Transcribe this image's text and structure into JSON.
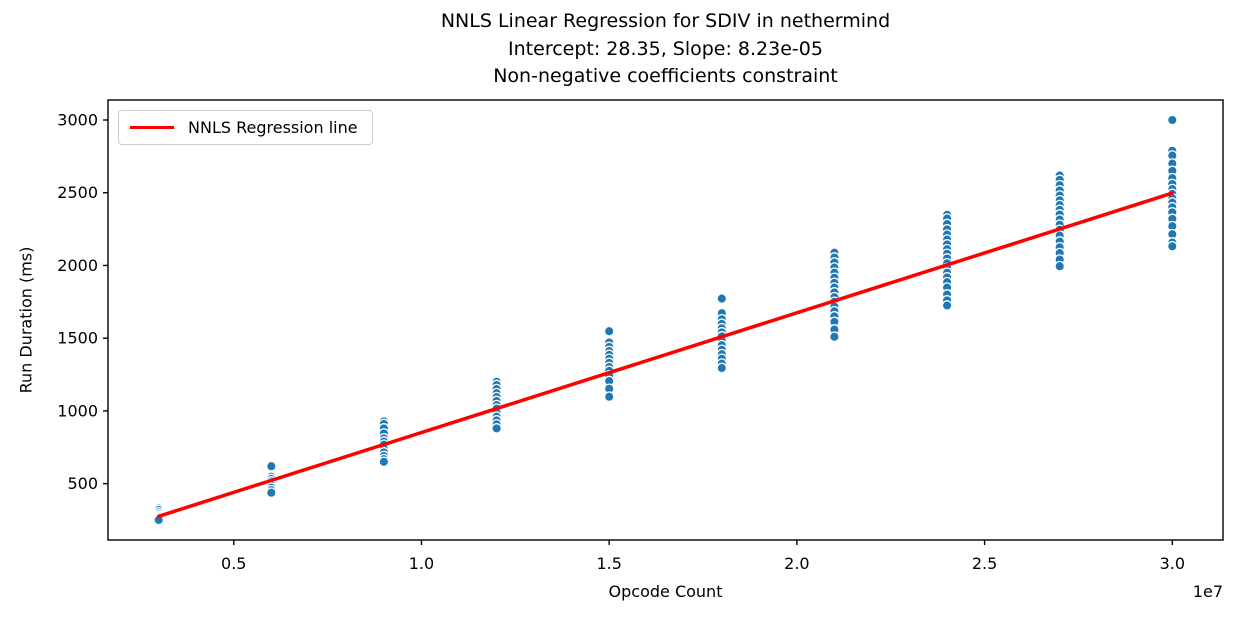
{
  "chart_data": {
    "type": "scatter",
    "title": "NNLS Linear Regression for SDIV in nethermind",
    "subtitle_intercept_slope": "Intercept: 28.35, Slope: 8.23e-05",
    "subtitle_constraint": "Non-negative coefficients constraint",
    "xlabel": "Opcode Count",
    "ylabel": "Run Duration (ms)",
    "x_scale_offset_label": "1e7",
    "xlim": [
      1650000,
      31350000
    ],
    "ylim": [
      112.5,
      3137.5
    ],
    "x_ticks": [
      5000000,
      10000000,
      15000000,
      20000000,
      25000000,
      30000000
    ],
    "x_tick_labels": [
      "0.5",
      "1.0",
      "1.5",
      "2.0",
      "2.5",
      "3.0"
    ],
    "y_ticks": [
      500,
      1000,
      1500,
      2000,
      2500,
      3000
    ],
    "y_tick_labels": [
      "500",
      "1000",
      "1500",
      "2000",
      "2500",
      "3000"
    ],
    "grid": false,
    "legend": {
      "position": "upper-left",
      "entries": [
        {
          "label": "NNLS Regression line",
          "color": "#ff0000",
          "type": "line"
        }
      ]
    },
    "scatter": {
      "marker_color": "#1f77b4",
      "marker_edge_color": "#ffffff",
      "clusters": [
        {
          "x": 3000000,
          "durations": [
            330,
            318,
            303,
            290,
            278,
            268,
            258,
            250
          ]
        },
        {
          "x": 6000000,
          "durations": [
            620,
            548,
            532,
            515,
            500,
            488,
            472,
            455,
            438
          ]
        },
        {
          "x": 9000000,
          "durations": [
            928,
            910,
            880,
            845,
            812,
            790,
            768,
            740,
            715,
            690,
            668,
            650
          ]
        },
        {
          "x": 12000000,
          "durations": [
            1200,
            1178,
            1150,
            1122,
            1095,
            1068,
            1040,
            1015,
            988,
            960,
            935,
            908,
            880
          ]
        },
        {
          "x": 15000000,
          "durations": [
            1548,
            1470,
            1440,
            1412,
            1385,
            1358,
            1330,
            1302,
            1275,
            1245,
            1205,
            1152,
            1098
          ]
        },
        {
          "x": 18000000,
          "durations": [
            1772,
            1672,
            1630,
            1598,
            1568,
            1540,
            1512,
            1482,
            1452,
            1420,
            1390,
            1358,
            1325,
            1295
          ]
        },
        {
          "x": 21000000,
          "durations": [
            2088,
            2055,
            2020,
            1985,
            1950,
            1915,
            1880,
            1848,
            1815,
            1782,
            1750,
            1718,
            1685,
            1650,
            1612,
            1560,
            1510
          ]
        },
        {
          "x": 24000000,
          "durations": [
            2348,
            2322,
            2285,
            2248,
            2212,
            2178,
            2145,
            2112,
            2080,
            2048,
            2015,
            1982,
            1950,
            1918,
            1885,
            1848,
            1800,
            1760,
            1725
          ]
        },
        {
          "x": 27000000,
          "durations": [
            2618,
            2588,
            2552,
            2515,
            2480,
            2448,
            2415,
            2382,
            2350,
            2315,
            2280,
            2245,
            2205,
            2165,
            2125,
            2085,
            2040,
            1995
          ]
        },
        {
          "x": 30000000,
          "durations": [
            3000,
            2788,
            2755,
            2700,
            2650,
            2600,
            2560,
            2525,
            2492,
            2462,
            2432,
            2400,
            2365,
            2320,
            2270,
            2215,
            2158,
            2132
          ]
        }
      ]
    },
    "regression_line": {
      "name": "NNLS Regression line",
      "color": "#ff0000",
      "intercept": 28.35,
      "slope": 8.23e-05,
      "x_start": 3000000,
      "x_end": 30000000,
      "line_width": 3.5
    }
  }
}
